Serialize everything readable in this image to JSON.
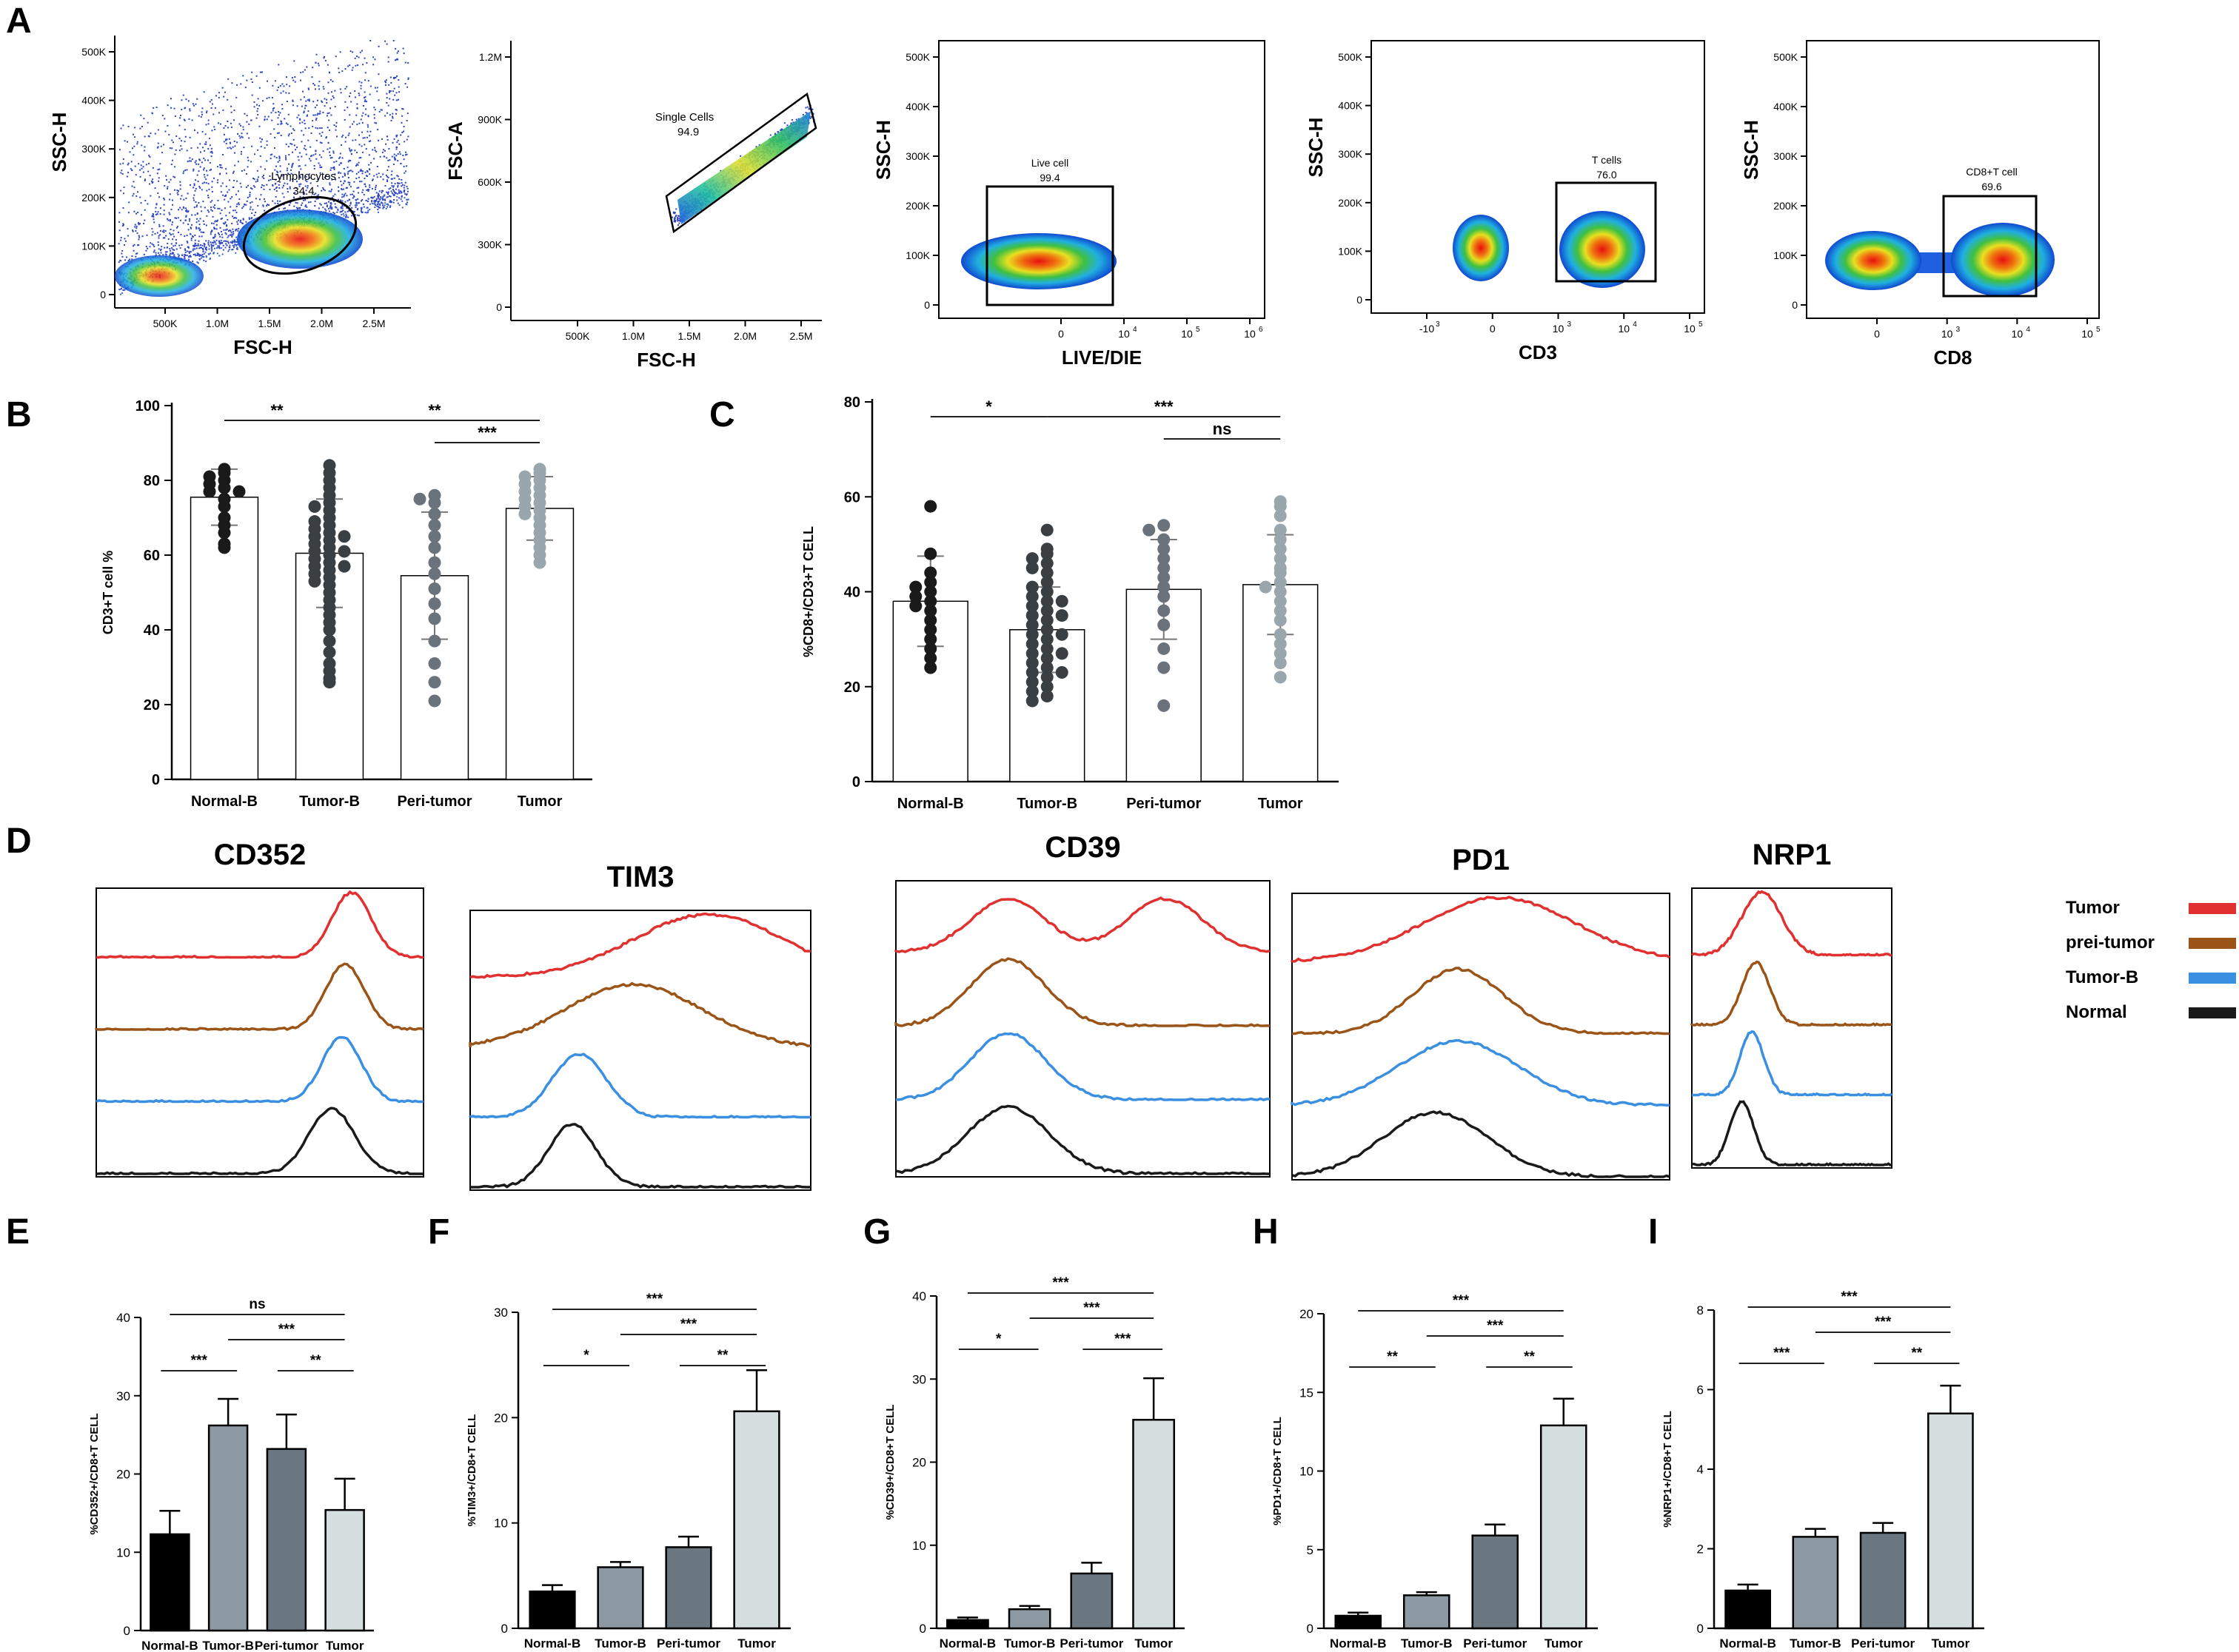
{
  "figure": {
    "panel_letters": [
      "A",
      "B",
      "C",
      "D",
      "E",
      "F",
      "G",
      "H",
      "I"
    ]
  },
  "colors": {
    "axis": "#000000",
    "normal_b": "#1a1a1a",
    "tumor_b": "#3a3f44",
    "peri_tumor": "#6a737b",
    "tumor": "#9aa6ad",
    "bar_normal": "#000000",
    "bar_tumor_b": "#8e9aa3",
    "bar_peri": "#6b7780",
    "bar_tumor": "#d5dede",
    "hist_tumor": "#e03030",
    "hist_peri": "#9a5418",
    "hist_tumorb": "#3a8fe0",
    "hist_normal": "#1a1a1a",
    "gate": "#000000"
  },
  "chart_data": [
    {
      "id": "A1",
      "type": "scatter",
      "xlabel": "FSC-H",
      "ylabel": "SSC-H",
      "xticks": [
        "500K",
        "1.0M",
        "1.5M",
        "2.0M",
        "2.5M"
      ],
      "yticks": [
        "0",
        "100K",
        "200K",
        "300K",
        "400K",
        "500K"
      ],
      "gate_name": "Lymphocytes",
      "gate_value": "34.4"
    },
    {
      "id": "A2",
      "type": "scatter",
      "xlabel": "FSC-H",
      "ylabel": "FSC-A",
      "xticks": [
        "500K",
        "1.0M",
        "1.5M",
        "2.0M",
        "2.5M"
      ],
      "yticks": [
        "0",
        "300K",
        "600K",
        "900K",
        "1.2M"
      ],
      "gate_name": "Single Cells",
      "gate_value": "94.9"
    },
    {
      "id": "A3",
      "type": "scatter",
      "xlabel": "LIVE/DIE",
      "ylabel": "SSC-H",
      "xticks": [
        "0",
        "10",
        "10",
        "10"
      ],
      "xexp": [
        "",
        "4",
        "5",
        "6"
      ],
      "yticks": [
        "0",
        "100K",
        "200K",
        "300K",
        "400K",
        "500K"
      ],
      "gate_name": "Live cell",
      "gate_value": "99.4"
    },
    {
      "id": "A4",
      "type": "scatter",
      "xlabel": "CD3",
      "ylabel": "SSC-H",
      "xticks": [
        "-10",
        "0",
        "10",
        "10",
        "10"
      ],
      "xexp": [
        "3",
        "",
        "3",
        "4",
        "5"
      ],
      "yticks": [
        "0",
        "100K",
        "200K",
        "300K",
        "400K",
        "500K"
      ],
      "gate_name": "T cells",
      "gate_value": "76.0"
    },
    {
      "id": "A5",
      "type": "scatter",
      "xlabel": "CD8",
      "ylabel": "SSC-H",
      "xticks": [
        "0",
        "10",
        "10",
        "10"
      ],
      "xexp": [
        "",
        "3",
        "4",
        "5"
      ],
      "yticks": [
        "0",
        "100K",
        "200K",
        "300K",
        "400K",
        "500K"
      ],
      "gate_name": "CD8+T cell",
      "gate_value": "69.6"
    },
    {
      "id": "B",
      "type": "bar",
      "categories": [
        "Normal-B",
        "Tumor-B",
        "Peri-tumor",
        "Tumor"
      ],
      "means": [
        75.5,
        60.5,
        54.5,
        72.5
      ],
      "sd": [
        7.5,
        14.5,
        17,
        8.5
      ],
      "points": [
        [
          83,
          82,
          81,
          80,
          79,
          78,
          77,
          77,
          75,
          73,
          70,
          68,
          66,
          63,
          62
        ],
        [
          84,
          82,
          80,
          78,
          76,
          74,
          73,
          72,
          70,
          69,
          68,
          67,
          66,
          65,
          64,
          63,
          62,
          61,
          60,
          59,
          58,
          57,
          56,
          55,
          54,
          53,
          52,
          50,
          48,
          46,
          44,
          42,
          40,
          37,
          34,
          31,
          29,
          27,
          26,
          65,
          61,
          57
        ],
        [
          76,
          75,
          74,
          71,
          68,
          65,
          62,
          58,
          55,
          51,
          47,
          43,
          37,
          31,
          26,
          21
        ],
        [
          83,
          82,
          81,
          80,
          79,
          78,
          77,
          76,
          75,
          74,
          73,
          72,
          71,
          70,
          68,
          66,
          64,
          62,
          60,
          58
        ]
      ],
      "ylim": [
        0,
        100
      ],
      "yticks": [
        0,
        20,
        40,
        60,
        80,
        100
      ],
      "ylabel": "CD3+T cell %",
      "sig": [
        {
          "a": 0,
          "b": 1,
          "level": 0,
          "label": "**"
        },
        {
          "a": 1,
          "b": 3,
          "level": 0,
          "label": "**"
        },
        {
          "a": 2,
          "b": 3,
          "level": 1,
          "label": "***"
        }
      ]
    },
    {
      "id": "C",
      "type": "bar",
      "categories": [
        "Normal-B",
        "Tumor-B",
        "Peri-tumor",
        "Tumor"
      ],
      "means": [
        38,
        32,
        40.5,
        41.5
      ],
      "sd": [
        9.5,
        9,
        10.5,
        10.5
      ],
      "points": [
        [
          58,
          48,
          44,
          42,
          41,
          40,
          39,
          38,
          37,
          36,
          34,
          32,
          30,
          28,
          26,
          24
        ],
        [
          53,
          49,
          48,
          47,
          46,
          45,
          44,
          42,
          41,
          40,
          39,
          38,
          37,
          36,
          35,
          34,
          33,
          32,
          31,
          30,
          29,
          28,
          27,
          26,
          25,
          24,
          23,
          22,
          21,
          20,
          19,
          18,
          17,
          38,
          35,
          31,
          27,
          23
        ],
        [
          54,
          53,
          51,
          49,
          47,
          45,
          43,
          41,
          39,
          36,
          33,
          28,
          24,
          16
        ],
        [
          59,
          58,
          56,
          53,
          51,
          49,
          47,
          45,
          44,
          42,
          41,
          40,
          38,
          36,
          34,
          31,
          29,
          27,
          25,
          22
        ]
      ],
      "ylim": [
        0,
        80
      ],
      "yticks": [
        0,
        20,
        40,
        60,
        80
      ],
      "ylabel": "%CD8+/CD3+T CELL",
      "sig": [
        {
          "a": 0,
          "b": 1,
          "level": 0,
          "label": "*"
        },
        {
          "a": 1,
          "b": 3,
          "level": 0,
          "label": "***"
        },
        {
          "a": 2,
          "b": 3,
          "level": 1,
          "label": "ns"
        }
      ]
    },
    {
      "id": "D",
      "type": "histogram",
      "markers": [
        "CD352",
        "TIM3",
        "CD39",
        "PD1",
        "NRP1"
      ],
      "legend": [
        "Tumor",
        "prei-tumor",
        "Tumor-B",
        "Normal"
      ]
    },
    {
      "id": "E",
      "type": "bar",
      "categories": [
        "Normal-B",
        "Tumor-B",
        "Peri-tumor",
        "Tumor"
      ],
      "values": [
        12.3,
        26.2,
        23.2,
        15.4
      ],
      "err": [
        3.0,
        3.4,
        4.4,
        4.0
      ],
      "ylim": [
        0,
        40
      ],
      "yticks": [
        0,
        10,
        20,
        30,
        40
      ],
      "ylabel": "%CD352+/CD8+T CELL",
      "sig": [
        {
          "a": 0,
          "b": 3,
          "label": "ns"
        },
        {
          "a": 1,
          "b": 3,
          "label": "***"
        },
        {
          "a": 0,
          "b": 1,
          "label": "***"
        },
        {
          "a": 2,
          "b": 3,
          "label": "**"
        }
      ]
    },
    {
      "id": "F",
      "type": "bar",
      "categories": [
        "Normal-B",
        "Tumor-B",
        "Peri-tumor",
        "Tumor"
      ],
      "values": [
        3.5,
        5.8,
        7.7,
        20.6
      ],
      "err": [
        0.6,
        0.5,
        1.0,
        3.9
      ],
      "ylim": [
        0,
        30
      ],
      "yticks": [
        0,
        10,
        20,
        30
      ],
      "ylabel": "%TIM3+/CD8+T CELL",
      "sig": [
        {
          "a": 0,
          "b": 3,
          "label": "***"
        },
        {
          "a": 1,
          "b": 3,
          "label": "***"
        },
        {
          "a": 0,
          "b": 1,
          "label": "*"
        },
        {
          "a": 2,
          "b": 3,
          "label": "**"
        }
      ]
    },
    {
      "id": "G",
      "type": "bar",
      "categories": [
        "Normal-B",
        "Tumor-B",
        "Peri-tumor",
        "Tumor"
      ],
      "values": [
        1.0,
        2.3,
        6.6,
        25.1
      ],
      "err": [
        0.3,
        0.4,
        1.3,
        5.0
      ],
      "ylim": [
        0,
        40
      ],
      "yticks": [
        0,
        10,
        20,
        30,
        40
      ],
      "ylabel": "%CD39+/CD8+T CELL",
      "sig": [
        {
          "a": 0,
          "b": 3,
          "label": "***"
        },
        {
          "a": 1,
          "b": 3,
          "label": "***"
        },
        {
          "a": 0,
          "b": 1,
          "label": "*"
        },
        {
          "a": 2,
          "b": 3,
          "label": "***"
        }
      ]
    },
    {
      "id": "H",
      "type": "bar",
      "categories": [
        "Normal-B",
        "Tumor-B",
        "Peri-tumor",
        "Tumor"
      ],
      "values": [
        0.8,
        2.1,
        5.9,
        12.9
      ],
      "err": [
        0.2,
        0.2,
        0.7,
        1.7
      ],
      "ylim": [
        0,
        20
      ],
      "yticks": [
        0,
        5,
        10,
        15,
        20
      ],
      "ylabel": "%PD1+/CD8+T CELL",
      "sig": [
        {
          "a": 0,
          "b": 3,
          "label": "***"
        },
        {
          "a": 1,
          "b": 3,
          "label": "***"
        },
        {
          "a": 0,
          "b": 1,
          "label": "**"
        },
        {
          "a": 2,
          "b": 3,
          "label": "**"
        }
      ]
    },
    {
      "id": "I",
      "type": "bar",
      "categories": [
        "Normal-B",
        "Tumor-B",
        "Peri-tumor",
        "Tumor"
      ],
      "values": [
        0.95,
        2.3,
        2.4,
        5.4
      ],
      "err": [
        0.15,
        0.2,
        0.25,
        0.7
      ],
      "ylim": [
        0,
        8
      ],
      "yticks": [
        0,
        2,
        4,
        6,
        8
      ],
      "ylabel": "%NRP1+/CD8+T CELL",
      "sig": [
        {
          "a": 0,
          "b": 3,
          "label": "***"
        },
        {
          "a": 1,
          "b": 3,
          "label": "***"
        },
        {
          "a": 0,
          "b": 1,
          "label": "***"
        },
        {
          "a": 2,
          "b": 3,
          "label": "**"
        }
      ]
    }
  ]
}
